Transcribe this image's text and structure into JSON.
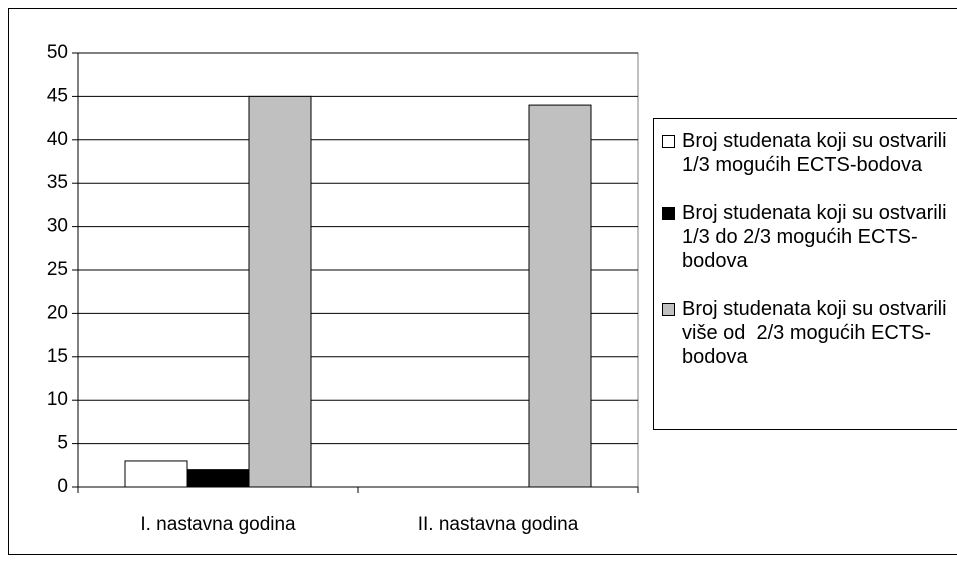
{
  "chart_data": {
    "type": "bar",
    "categories": [
      "I. nastavna godina",
      "II. nastavna godina"
    ],
    "series": [
      {
        "name": "Broj studenata koji su ostvarili 1/3 mogućih ECTS-bodova",
        "color": "#ffffff",
        "values": [
          3,
          0
        ]
      },
      {
        "name": "Broj studenata koji su ostvarili 1/3 do 2/3 mogućih ECTS-bodova",
        "color": "#000000",
        "values": [
          2,
          0
        ]
      },
      {
        "name": "Broj studenata koji su ostvarili više od  2/3 mogućih ECTS-bodova",
        "color": "#c0c0c0",
        "values": [
          45,
          44
        ]
      }
    ],
    "ylim": [
      0,
      50
    ],
    "yticks": [
      0,
      5,
      10,
      15,
      20,
      25,
      30,
      35,
      40,
      45,
      50
    ],
    "grid": true,
    "legend": "right"
  }
}
